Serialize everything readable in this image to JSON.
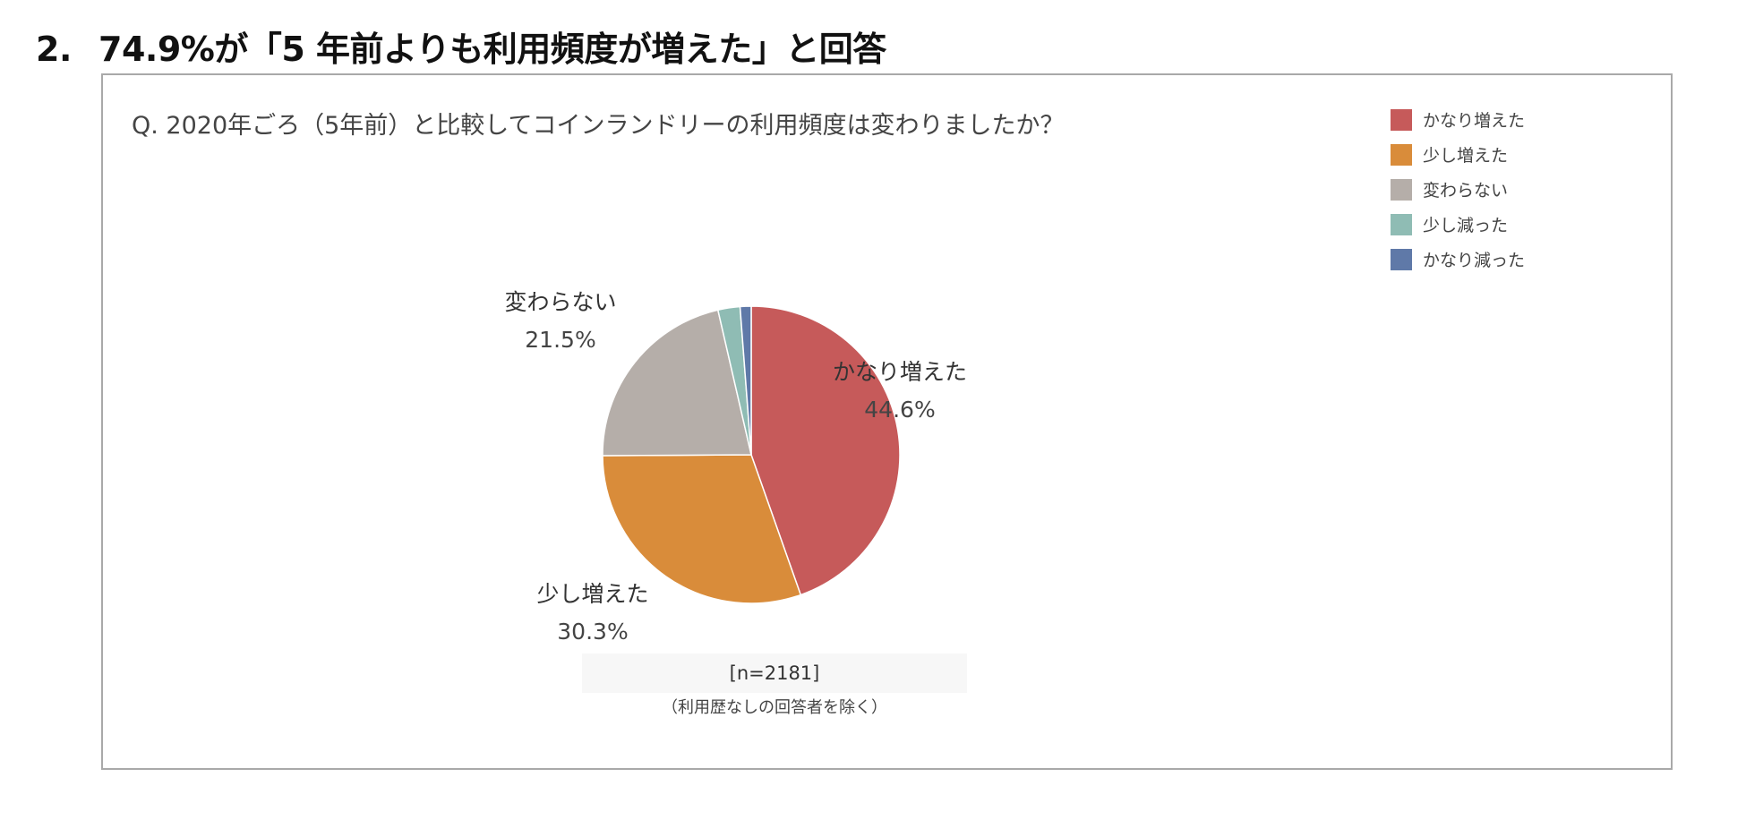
{
  "heading": {
    "number": "2.",
    "text": "74.9%が「5 年前よりも利用頻度が増えた」と回答"
  },
  "chart_data": {
    "type": "pie",
    "title": "Q. 2020年ごろ（5年前）と比較してコインランドリーの利用頻度は変わりましたか？",
    "legend_position": "top-right",
    "slices": [
      {
        "label": "かなり増えた",
        "value": 44.6,
        "value_label": "44.6%",
        "color": "#c65a5a",
        "show_label": true
      },
      {
        "label": "少し増えた",
        "value": 30.3,
        "value_label": "30.3%",
        "color": "#d98c3a",
        "show_label": true
      },
      {
        "label": "変わらない",
        "value": 21.5,
        "value_label": "21.5%",
        "color": "#b5aea9",
        "show_label": true
      },
      {
        "label": "少し減った",
        "value": 2.4,
        "value_label": "",
        "color": "#8fbcb4",
        "show_label": false
      },
      {
        "label": "かなり減った",
        "value": 1.2,
        "value_label": "",
        "color": "#5f79a8",
        "show_label": false
      }
    ],
    "sample_size": "[n=2181]",
    "note": "（利用歴なしの回答者を除く）"
  }
}
